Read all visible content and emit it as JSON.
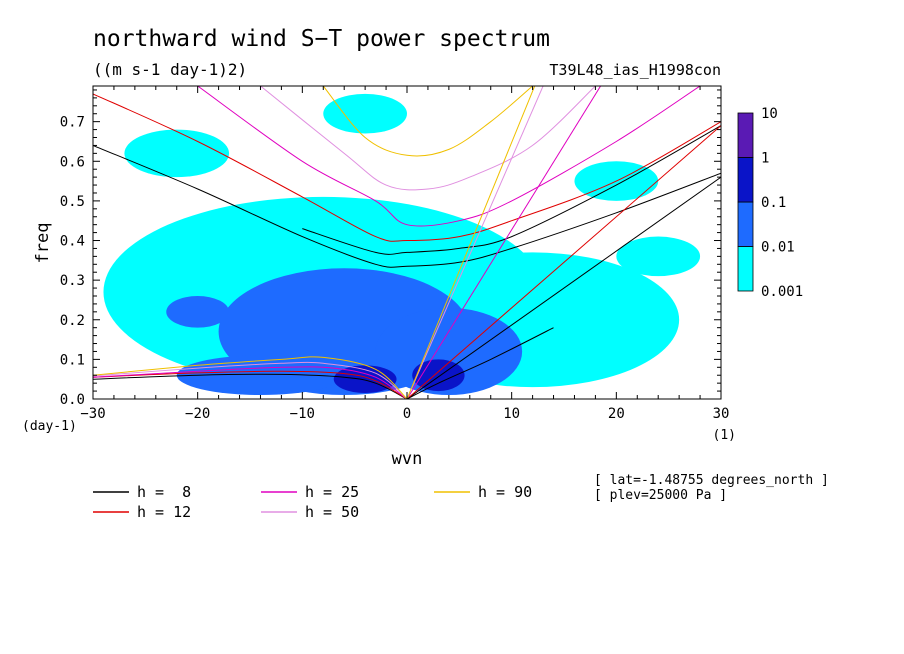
{
  "chart_data": {
    "type": "heatmap",
    "title": "northward wind S−T power spectrum",
    "subtitle": "((m s-1 day-1)2)",
    "run_label": "T39L48_ias_H1998con",
    "xlabel": "wvn",
    "ylabel": "freq",
    "x_unit": "(1)",
    "y_unit": "(day-1)",
    "xlim": [
      -30,
      30
    ],
    "ylim": [
      0,
      0.79
    ],
    "x_ticks": [
      "−30",
      "−20",
      "−10",
      "0",
      "10",
      "20",
      "30"
    ],
    "y_ticks": [
      "0.0",
      "0.1",
      "0.2",
      "0.3",
      "0.4",
      "0.5",
      "0.6",
      "0.7"
    ],
    "colorbar": {
      "levels": [
        "0.001",
        "0.01",
        "0.1",
        "1",
        "10"
      ],
      "colors": [
        "#00ffff",
        "#1e6bff",
        "#0a14c8",
        "#5a1ab4"
      ]
    },
    "regions": [
      {
        "level": 0,
        "cx": -8,
        "cy": 0.27,
        "rx": 21,
        "ry": 0.24
      },
      {
        "level": 0,
        "cx": 12,
        "cy": 0.2,
        "rx": 14,
        "ry": 0.17
      },
      {
        "level": 0,
        "cx": -22,
        "cy": 0.62,
        "rx": 5,
        "ry": 0.06
      },
      {
        "level": 0,
        "cx": -4,
        "cy": 0.72,
        "rx": 4,
        "ry": 0.05
      },
      {
        "level": 0,
        "cx": 20,
        "cy": 0.55,
        "rx": 4,
        "ry": 0.05
      },
      {
        "level": 0,
        "cx": 24,
        "cy": 0.36,
        "rx": 4,
        "ry": 0.05
      },
      {
        "level": 1,
        "cx": -6,
        "cy": 0.17,
        "rx": 12,
        "ry": 0.16
      },
      {
        "level": 1,
        "cx": 4,
        "cy": 0.12,
        "rx": 7,
        "ry": 0.11
      },
      {
        "level": 1,
        "cx": -14,
        "cy": 0.06,
        "rx": 8,
        "ry": 0.05
      },
      {
        "level": 1,
        "cx": -20,
        "cy": 0.22,
        "rx": 3,
        "ry": 0.04
      },
      {
        "level": 2,
        "cx": -4,
        "cy": 0.05,
        "rx": 3,
        "ry": 0.035
      },
      {
        "level": 2,
        "cx": 3,
        "cy": 0.06,
        "rx": 2.5,
        "ry": 0.04
      }
    ],
    "series": [
      {
        "name": "h =  8",
        "color": "#000000"
      },
      {
        "name": "h = 12",
        "color": "#e00000"
      },
      {
        "name": "h = 25",
        "color": "#e000c0"
      },
      {
        "name": "h = 50",
        "color": "#e090e0"
      },
      {
        "name": "h = 90",
        "color": "#f0c000"
      }
    ],
    "curves": [
      {
        "series": 0,
        "kind": "gravity",
        "x": [
          -30,
          -20,
          -10,
          -3,
          0,
          5,
          10,
          20,
          30
        ],
        "y": [
          0.64,
          0.53,
          0.41,
          0.34,
          0.335,
          0.345,
          0.38,
          0.47,
          0.57
        ]
      },
      {
        "series": 0,
        "kind": "gravity",
        "x": [
          -10,
          -3,
          0,
          5,
          10,
          20,
          30
        ],
        "y": [
          0.43,
          0.37,
          0.37,
          0.38,
          0.41,
          0.54,
          0.69
        ]
      },
      {
        "series": 1,
        "kind": "gravity",
        "x": [
          -30,
          -20,
          -10,
          -3,
          0,
          5,
          10,
          20,
          30
        ],
        "y": [
          0.77,
          0.65,
          0.51,
          0.41,
          0.4,
          0.41,
          0.45,
          0.55,
          0.7
        ]
      },
      {
        "series": 2,
        "kind": "gravity",
        "x": [
          -20,
          -10,
          -3,
          0,
          5,
          10,
          20,
          28
        ],
        "y": [
          0.79,
          0.6,
          0.5,
          0.44,
          0.45,
          0.5,
          0.65,
          0.79
        ]
      },
      {
        "series": 3,
        "kind": "gravity",
        "x": [
          -14,
          -6,
          -2,
          2,
          6,
          12,
          18
        ],
        "y": [
          0.79,
          0.62,
          0.54,
          0.53,
          0.56,
          0.64,
          0.79
        ]
      },
      {
        "series": 4,
        "kind": "gravity",
        "x": [
          -8,
          -4,
          0,
          4,
          8,
          12
        ],
        "y": [
          0.79,
          0.66,
          0.615,
          0.63,
          0.7,
          0.79
        ]
      },
      {
        "series": 0,
        "kind": "kelvin",
        "x": [
          0,
          30
        ],
        "y": [
          0,
          0.56
        ]
      },
      {
        "series": 1,
        "kind": "kelvin",
        "x": [
          0,
          30
        ],
        "y": [
          0,
          0.69
        ]
      },
      {
        "series": 2,
        "kind": "kelvin",
        "x": [
          0,
          18.5
        ],
        "y": [
          0,
          0.79
        ]
      },
      {
        "series": 3,
        "kind": "kelvin",
        "x": [
          0,
          13
        ],
        "y": [
          0,
          0.79
        ]
      },
      {
        "series": 4,
        "kind": "kelvin",
        "x": [
          0,
          12.2
        ],
        "y": [
          0,
          0.79
        ]
      },
      {
        "series": 0,
        "kind": "rossby",
        "x": [
          -30,
          -20,
          -12,
          -6,
          -3,
          0
        ],
        "y": [
          0.05,
          0.06,
          0.062,
          0.055,
          0.04,
          0
        ]
      },
      {
        "series": 1,
        "kind": "rossby",
        "x": [
          -30,
          -20,
          -12,
          -6,
          -3,
          0
        ],
        "y": [
          0.055,
          0.066,
          0.07,
          0.064,
          0.046,
          0
        ]
      },
      {
        "series": 2,
        "kind": "rossby",
        "x": [
          -30,
          -20,
          -12,
          -7,
          -3,
          0
        ],
        "y": [
          0.055,
          0.07,
          0.08,
          0.078,
          0.055,
          0
        ]
      },
      {
        "series": 3,
        "kind": "rossby",
        "x": [
          -30,
          -20,
          -12,
          -8,
          -3,
          0
        ],
        "y": [
          0.058,
          0.078,
          0.09,
          0.09,
          0.065,
          0
        ]
      },
      {
        "series": 4,
        "kind": "rossby",
        "x": [
          -30,
          -20,
          -12,
          -8,
          -3,
          0
        ],
        "y": [
          0.06,
          0.085,
          0.1,
          0.105,
          0.075,
          0
        ]
      },
      {
        "series": 0,
        "kind": "mrg",
        "x": [
          0,
          3,
          8,
          14
        ],
        "y": [
          0,
          0.04,
          0.1,
          0.18
        ]
      }
    ]
  },
  "info": {
    "lat": "[ lat=-1.48755 degrees_north ]",
    "plev": "[ plev=25000 Pa ]"
  }
}
